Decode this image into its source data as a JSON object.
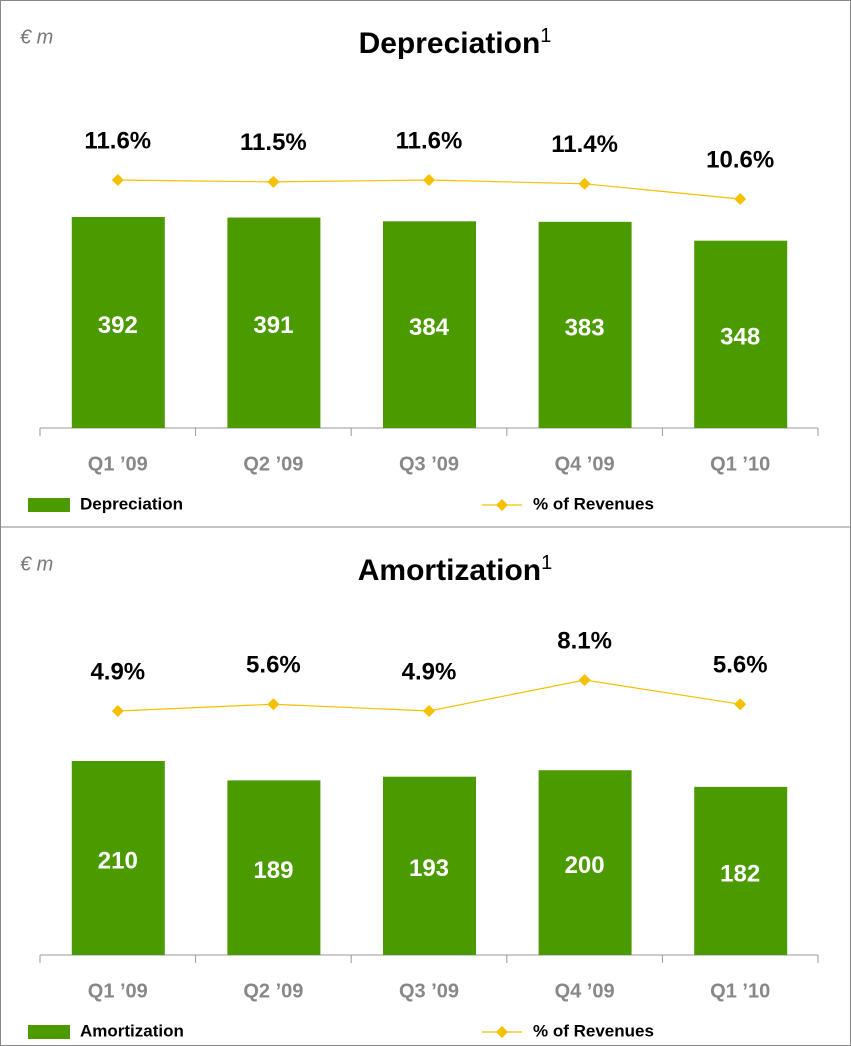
{
  "chart_data": [
    {
      "type": "bar_line",
      "title": "Depreciation",
      "title_note": "1",
      "unit": "€ m",
      "categories": [
        "Q1 ’09",
        "Q2 ’09",
        "Q3 ’09",
        "Q4 ’09",
        "Q1 ’10"
      ],
      "series": [
        {
          "name": "Depreciation",
          "color": "#4a9a00",
          "values": [
            392,
            391,
            384,
            383,
            348
          ]
        },
        {
          "name": "% of Revenues",
          "color": "#f5c000",
          "axis": "y2",
          "values": [
            11.6,
            11.5,
            11.6,
            11.4,
            10.6
          ],
          "value_labels": [
            "11.6%",
            "11.5%",
            "11.6%",
            "11.4%",
            "10.6%"
          ]
        }
      ]
    },
    {
      "type": "bar_line",
      "title": "Amortization",
      "title_note": "1",
      "unit": "€ m",
      "categories": [
        "Q1 ’09",
        "Q2 ’09",
        "Q3 ’09",
        "Q4 ’09",
        "Q1 ’10"
      ],
      "series": [
        {
          "name": "Amortization",
          "color": "#4a9a00",
          "values": [
            210,
            189,
            193,
            200,
            182
          ]
        },
        {
          "name": "% of Revenues",
          "color": "#f5c000",
          "axis": "y2",
          "values": [
            4.9,
            5.6,
            4.9,
            8.1,
            5.6
          ],
          "value_labels": [
            "4.9%",
            "5.6%",
            "4.9%",
            "8.1%",
            "5.6%"
          ]
        }
      ]
    }
  ]
}
